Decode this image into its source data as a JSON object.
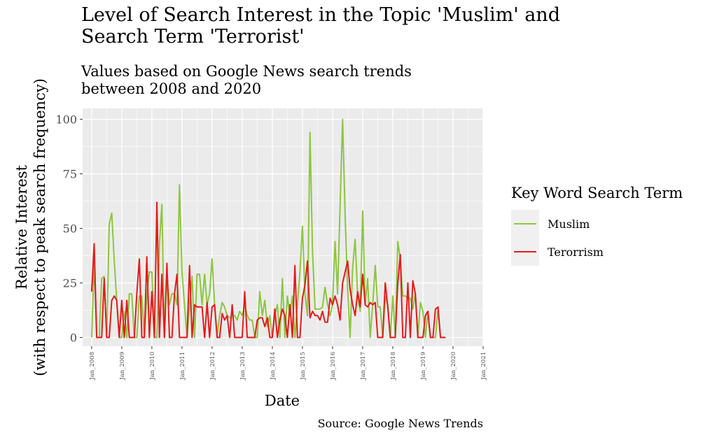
{
  "chart_data": {
    "type": "line",
    "title": "Level of Search Interest in the Topic 'Muslim' and Search Term 'Terrorist'",
    "title_lines": [
      "Level of Search Interest in the Topic 'Muslim' and",
      "Search Term 'Terrorist'"
    ],
    "subtitle": "Values based on Google News search trends between 2008 and 2020",
    "subtitle_lines": [
      "Values based on Google News search trends",
      "between 2008 and 2020"
    ],
    "caption": "Source: Google News Trends",
    "xlabel": "Date",
    "ylabel_lines": [
      "Relative Interest",
      "(with respect to peak search frequency)"
    ],
    "x_start": 2008.0,
    "x_step": 0.08333,
    "xlim": [
      2007.7,
      2021.0
    ],
    "ylim": [
      -4,
      105
    ],
    "y_ticks": [
      0,
      25,
      50,
      75,
      100
    ],
    "x_ticks": [
      {
        "year": 2008,
        "label": "Jan_2008"
      },
      {
        "year": 2009,
        "label": "Jan_2009"
      },
      {
        "year": 2010,
        "label": "Jan_2010"
      },
      {
        "year": 2011,
        "label": "Jan_2011"
      },
      {
        "year": 2012,
        "label": "Jan_2012"
      },
      {
        "year": 2013,
        "label": "Jan_2013"
      },
      {
        "year": 2014,
        "label": "Jan_2014"
      },
      {
        "year": 2015,
        "label": "Jan_2015"
      },
      {
        "year": 2016,
        "label": "Jan_2016"
      },
      {
        "year": 2017,
        "label": "Jan_2017"
      },
      {
        "year": 2018,
        "label": "Jan_2018"
      },
      {
        "year": 2019,
        "label": "Jan_2019"
      },
      {
        "year": 2020,
        "label": "Jan_2020"
      },
      {
        "year": 2021,
        "label": "Jan_2021"
      }
    ],
    "legend_title": "Key Word Search Term",
    "series": [
      {
        "name": "Muslim",
        "color": "#8cc63f",
        "values": [
          0,
          34,
          0,
          0,
          27,
          28,
          0,
          52,
          57,
          35,
          17,
          0,
          0,
          12,
          0,
          20,
          20,
          0,
          0,
          19,
          19,
          0,
          19,
          30,
          30,
          0,
          0,
          43,
          61,
          0,
          30,
          15,
          20,
          20,
          15,
          70,
          30,
          15,
          0,
          14,
          28,
          0,
          29,
          29,
          15,
          29,
          15,
          20,
          36,
          15,
          0,
          10,
          16,
          14,
          10,
          9,
          10,
          10,
          8,
          12,
          10,
          15,
          10,
          8,
          8,
          0,
          0,
          21,
          10,
          17,
          5,
          10,
          0,
          10,
          15,
          0,
          27,
          0,
          19,
          10,
          19,
          0,
          15,
          30,
          51,
          20,
          10,
          94,
          40,
          13,
          13,
          13,
          14,
          23,
          15,
          10,
          15,
          44,
          20,
          60,
          100,
          56,
          22,
          0,
          32,
          45,
          19,
          12,
          58,
          15,
          27,
          0,
          15,
          33,
          14,
          14,
          0,
          19,
          15,
          0,
          19,
          0,
          44,
          36,
          19,
          19,
          18,
          18,
          13,
          20,
          0,
          16,
          12,
          0,
          12,
          0,
          0,
          0,
          13,
          0,
          0,
          0
        ]
      },
      {
        "name": "Terorrism",
        "color": "#e41a1c",
        "values": [
          21,
          43,
          0,
          0,
          0,
          27,
          0,
          0,
          17,
          19,
          17,
          0,
          17,
          0,
          17,
          0,
          0,
          0,
          20,
          36,
          0,
          0,
          37,
          0,
          21,
          0,
          62,
          0,
          29,
          0,
          34,
          0,
          0,
          20,
          29,
          0,
          0,
          0,
          0,
          33,
          0,
          15,
          14,
          14,
          14,
          0,
          16,
          0,
          14,
          15,
          0,
          0,
          11,
          8,
          10,
          0,
          15,
          0,
          0,
          0,
          0,
          21,
          0,
          0,
          0,
          0,
          8,
          9,
          9,
          5,
          9,
          0,
          0,
          13,
          0,
          8,
          13,
          10,
          0,
          15,
          0,
          33,
          0,
          0,
          18,
          24,
          35,
          9,
          12,
          10,
          10,
          8,
          12,
          7,
          7,
          18,
          15,
          19,
          15,
          8,
          25,
          30,
          35,
          22,
          15,
          10,
          21,
          14,
          29,
          15,
          14,
          16,
          15,
          16,
          0,
          0,
          0,
          25,
          14,
          0,
          0,
          0,
          25,
          38,
          0,
          0,
          25,
          0,
          26,
          20,
          0,
          0,
          0,
          10,
          12,
          0,
          0,
          13,
          14,
          0,
          0,
          0
        ]
      }
    ]
  }
}
